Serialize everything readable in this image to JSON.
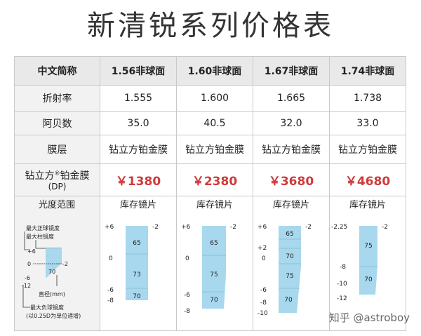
{
  "title": "新清锐系列价格表",
  "header": [
    "中文简称",
    "1.56非球面",
    "1.60非球面",
    "1.67非球面",
    "1.74非球面"
  ],
  "rows": {
    "refractive": {
      "label": "折射率",
      "values": [
        "1.555",
        "1.600",
        "1.665",
        "1.738"
      ]
    },
    "abbe": {
      "label": "阿贝数",
      "values": [
        "35.0",
        "40.5",
        "32.0",
        "33.0"
      ]
    },
    "coating": {
      "label": "膜层",
      "values": [
        "钻立方铂金膜",
        "钻立方铂金膜",
        "钻立方铂金膜",
        "钻立方铂金膜"
      ]
    },
    "price": {
      "label_main": "钻立方",
      "label_sup": "®",
      "label_tail": "铂金膜",
      "label_unit": "(DP)",
      "values": [
        "￥1380",
        "￥2380",
        "￥3680",
        "￥4680"
      ]
    },
    "power": {
      "label": "光度范围",
      "stock_label": "库存镜片"
    }
  },
  "legend": {
    "max_plus_sphere": "最大正球镜度",
    "max_cyl": "最大柱镜度",
    "plus6": "+6",
    "zero": "0",
    "minus2": "-2",
    "seventy": "70",
    "minus6": "-6",
    "minus12": "-12",
    "diameter": "直径(mm)",
    "max_minus_sphere": "最大负球镜度",
    "step_note": "(以0.25D为单位递增)"
  },
  "charts": [
    {
      "left": [
        "+6",
        "0",
        "-6",
        "-8"
      ],
      "right": "-2",
      "values": [
        "65",
        "73",
        "70"
      ]
    },
    {
      "left": [
        "+6",
        "0",
        "-6",
        "-8"
      ],
      "right": "-2",
      "values": [
        "65",
        "75",
        "70"
      ]
    },
    {
      "left": [
        "+6",
        "+2",
        "0",
        "-6",
        "-8",
        "-10"
      ],
      "right": "-2",
      "values": [
        "65",
        "70",
        "75",
        "70"
      ]
    },
    {
      "left": [
        "-2.25",
        "-8",
        "-10",
        "-12"
      ],
      "right": "-2",
      "values": [
        "75",
        "70"
      ]
    }
  ],
  "colors": {
    "chart_fill": "#a8d8ee",
    "chart_line": "#8cbfd6",
    "price_red": "#d03a3a"
  },
  "watermark": "知乎 @astroboy"
}
